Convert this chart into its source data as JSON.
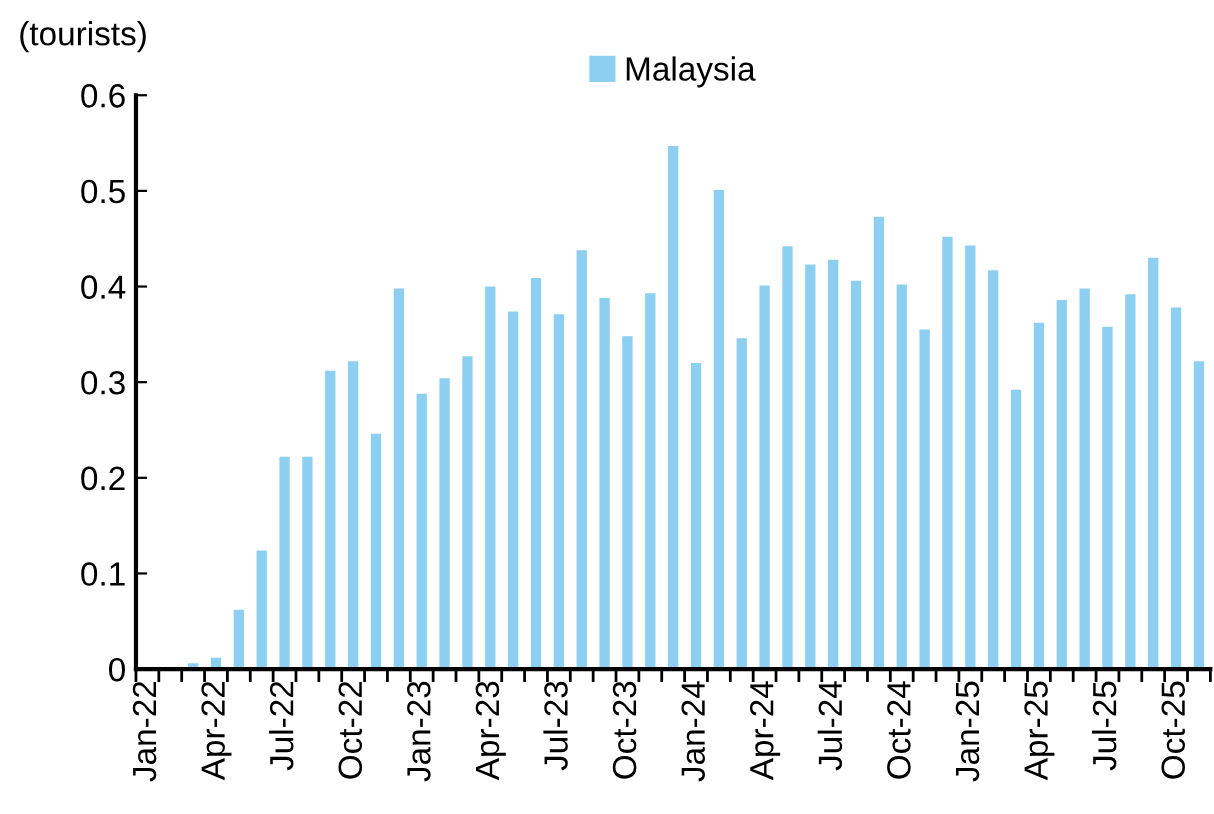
{
  "chart_data": {
    "type": "bar",
    "ylabel": "(tourists)",
    "categories": [
      "Jan-22",
      null,
      null,
      "Apr-22",
      null,
      null,
      "Jul-22",
      null,
      null,
      "Oct-22",
      null,
      null,
      "Jan-23",
      null,
      null,
      "Apr-23",
      null,
      null,
      "Jul-23",
      null,
      null,
      "Oct-23",
      null,
      null,
      "Jan-24",
      null,
      null,
      "Apr-24",
      null,
      null,
      "Jul-24",
      null,
      null,
      "Oct-24",
      null,
      null,
      "Jan-25",
      null,
      null,
      "Apr-25",
      null,
      null,
      "Jul-25",
      null,
      null,
      "Oct-25",
      null
    ],
    "series": [
      {
        "name": "Malaysia",
        "color": "#8ccff0",
        "values": [
          0.002,
          0.002,
          0.006,
          0.012,
          0.062,
          0.124,
          0.222,
          0.222,
          0.312,
          0.322,
          0.246,
          0.398,
          0.288,
          0.304,
          0.327,
          0.4,
          0.374,
          0.409,
          0.371,
          0.438,
          0.388,
          0.348,
          0.393,
          0.547,
          0.32,
          0.501,
          0.346,
          0.401,
          0.442,
          0.423,
          0.428,
          0.406,
          0.473,
          0.402,
          0.355,
          0.452,
          0.443,
          0.417,
          0.292,
          0.362,
          0.386,
          0.398,
          0.358,
          0.392,
          0.43,
          0.378,
          0.322
        ]
      }
    ],
    "ylim": [
      0,
      0.6
    ],
    "yticks": [
      0,
      0.1,
      0.2,
      0.3,
      0.4,
      0.5,
      0.6
    ],
    "grid": false,
    "legend": "top"
  }
}
